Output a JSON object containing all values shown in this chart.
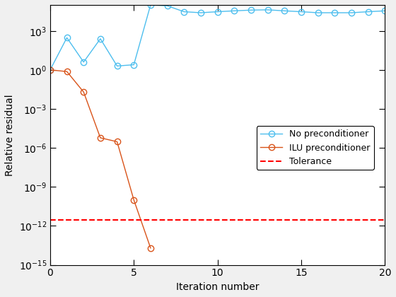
{
  "no_prec_x": [
    0,
    1,
    2,
    3,
    4,
    5,
    6,
    7,
    8,
    9,
    10,
    11,
    12,
    13,
    14,
    15,
    16,
    17,
    18,
    19,
    20
  ],
  "no_prec_y": [
    1.0,
    300.0,
    4,
    250.0,
    2.0,
    2.5,
    100000.0,
    85000.0,
    30000.0,
    25000.0,
    30000.0,
    35000.0,
    40000.0,
    42000.0,
    35000.0,
    30000.0,
    25000.0,
    25000.0,
    25000.0,
    30000.0,
    35000.0
  ],
  "ilu_x": [
    0,
    1,
    2,
    3,
    4,
    5,
    6
  ],
  "ilu_y": [
    1.0,
    0.75,
    0.02,
    6e-06,
    3e-06,
    1e-10,
    2e-14
  ],
  "tolerance": 3e-12,
  "xlim": [
    0,
    20
  ],
  "ylim_log_min": -15,
  "ylim_log_max": 5,
  "xlabel": "Iteration number",
  "ylabel": "Relative residual",
  "no_prec_color": "#4DBEEE",
  "ilu_color": "#D95319",
  "tol_color": "#FF0000",
  "legend_labels": [
    "No preconditioner",
    "ILU preconditioner",
    "Tolerance"
  ],
  "bg_color": "#F0F0F0",
  "axes_bg": "#FFFFFF",
  "grid_color": "#FFFFFF",
  "marker_size": 6,
  "line_width": 1.0
}
